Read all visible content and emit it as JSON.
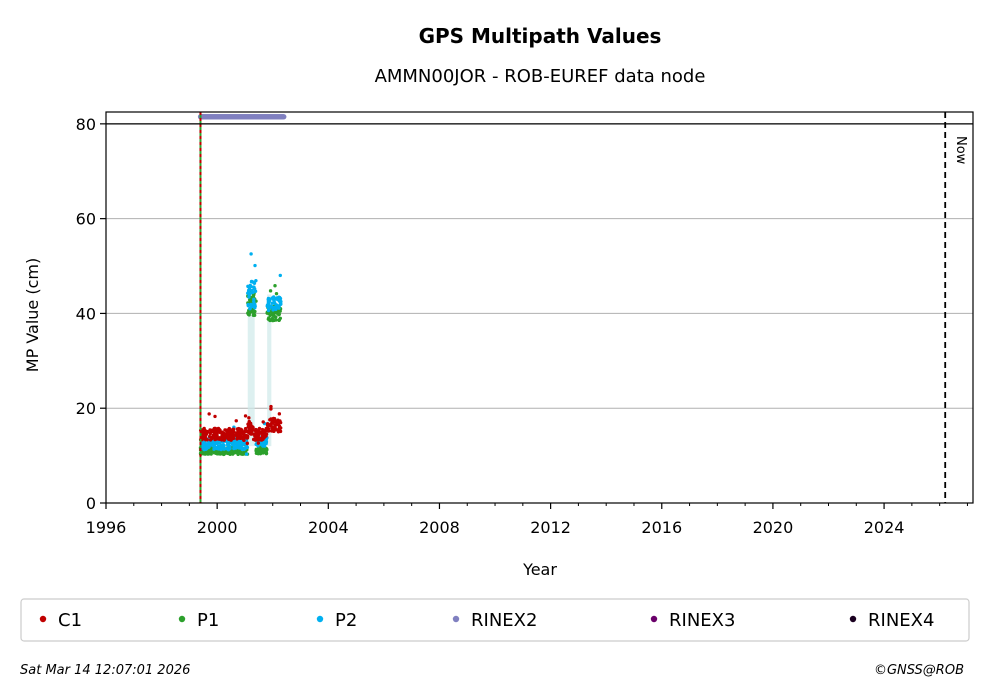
{
  "chart_data": {
    "type": "scatter",
    "title": "GPS Multipath Values",
    "subtitle": "AMMN00JOR - ROB-EUREF data node",
    "xlabel": "Year",
    "ylabel": "MP Value (cm)",
    "xlim": [
      1996,
      2027.2
    ],
    "ylim": [
      0,
      82.5
    ],
    "xticks": [
      1996,
      2000,
      2004,
      2008,
      2012,
      2016,
      2020,
      2024
    ],
    "yticks": [
      0,
      20,
      40,
      60,
      80
    ],
    "grid": "horizontal",
    "now_line": {
      "x": 2026.2,
      "label": "Now"
    },
    "start_line": {
      "x": 1999.4
    },
    "series": [
      {
        "name": "C1",
        "color": "#c00000",
        "segments": [
          {
            "x0": 1999.4,
            "x1": 2001.1,
            "base": 14.5,
            "spread": 2.5
          },
          {
            "x0": 2001.1,
            "x1": 2001.3,
            "base": 16.0,
            "spread": 3.0
          },
          {
            "x0": 2001.3,
            "x1": 2001.8,
            "base": 14.5,
            "spread": 2.5
          },
          {
            "x0": 2001.8,
            "x1": 2002.3,
            "base": 16.5,
            "spread": 3.0
          }
        ]
      },
      {
        "name": "P1",
        "color": "#2ca02c",
        "segments": [
          {
            "x0": 1999.4,
            "x1": 2001.1,
            "base": 11.0,
            "spread": 1.5
          },
          {
            "x0": 2001.1,
            "x1": 2001.4,
            "base": 42.0,
            "spread": 5.0
          },
          {
            "x0": 2001.4,
            "x1": 2001.8,
            "base": 11.0,
            "spread": 1.2
          },
          {
            "x0": 2001.8,
            "x1": 2002.3,
            "base": 40.0,
            "spread": 3.0
          }
        ]
      },
      {
        "name": "P2",
        "color": "#00b0f0",
        "segments": [
          {
            "x0": 1999.4,
            "x1": 2001.1,
            "base": 12.5,
            "spread": 2.5
          },
          {
            "x0": 2001.1,
            "x1": 2001.4,
            "base": 44.0,
            "spread": 6.0
          },
          {
            "x0": 2001.4,
            "x1": 2001.8,
            "base": 13.0,
            "spread": 2.0
          },
          {
            "x0": 2001.8,
            "x1": 2002.3,
            "base": 42.0,
            "spread": 3.0
          }
        ]
      },
      {
        "name": "RINEX2",
        "color": "#8080c0",
        "segments": [
          {
            "x0": 1999.4,
            "x1": 2002.4,
            "base": 81.5,
            "spread": 0
          }
        ]
      },
      {
        "name": "RINEX3",
        "color": "#6a006a",
        "segments": []
      },
      {
        "name": "RINEX4",
        "color": "#1a0020",
        "segments": []
      }
    ]
  },
  "footer": {
    "timestamp": "Sat Mar 14 12:07:01 2026",
    "copyright": "©GNSS@ROB"
  }
}
